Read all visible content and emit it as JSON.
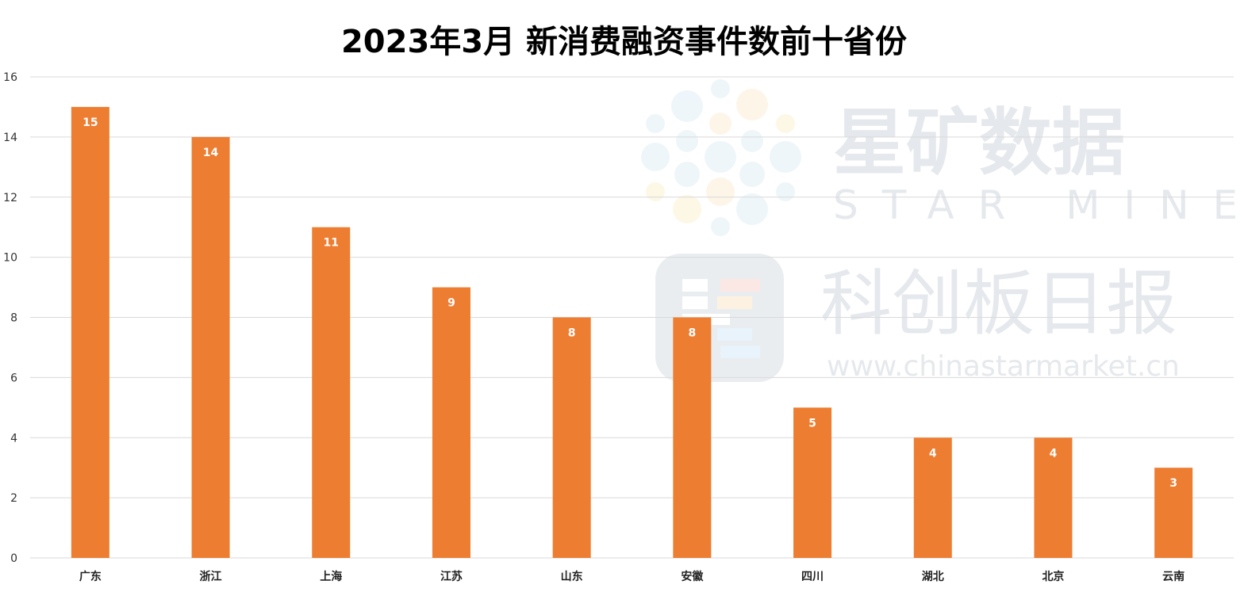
{
  "chart_data": {
    "type": "bar",
    "title": "2023年3月 新消费融资事件数前十省份",
    "categories": [
      "广东",
      "浙江",
      "上海",
      "江苏",
      "山东",
      "安徽",
      "四川",
      "湖北",
      "北京",
      "云南"
    ],
    "values": [
      15,
      14,
      11,
      9,
      8,
      8,
      5,
      4,
      4,
      3
    ],
    "ylim": [
      0,
      16
    ],
    "yticks": [
      0,
      2,
      4,
      6,
      8,
      10,
      12,
      14,
      16
    ],
    "grid": true,
    "data_labels": true,
    "bar_color": "#ed7d31"
  },
  "watermark": {
    "brand_cn": "星矿数据",
    "brand_en": "STAR MINE",
    "publisher": "科创板日报",
    "url": "www.chinastarmarket.cn"
  }
}
